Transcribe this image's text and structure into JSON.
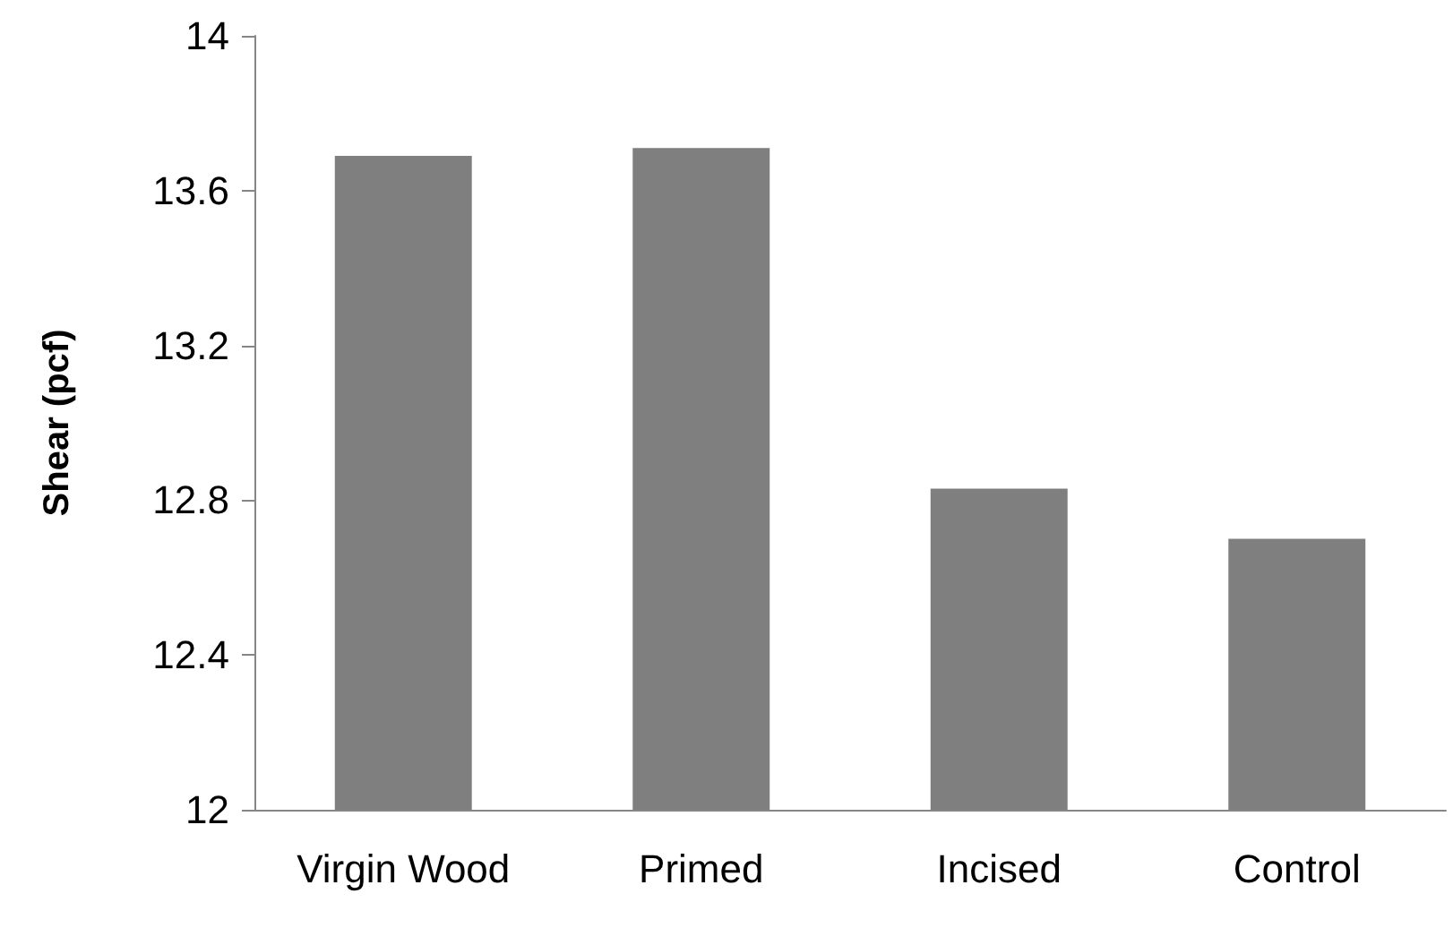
{
  "chart_data": {
    "type": "bar",
    "categories": [
      "Virgin Wood",
      "Primed",
      "Incised",
      "Control"
    ],
    "values": [
      13.69,
      13.71,
      12.83,
      12.7
    ],
    "color": "#7f7f7f",
    "ylabel": "Shear (pcf)",
    "ylim": [
      12,
      14
    ],
    "yticks": [
      12,
      12.4,
      12.8,
      13.2,
      13.6,
      14
    ],
    "grid": false
  }
}
